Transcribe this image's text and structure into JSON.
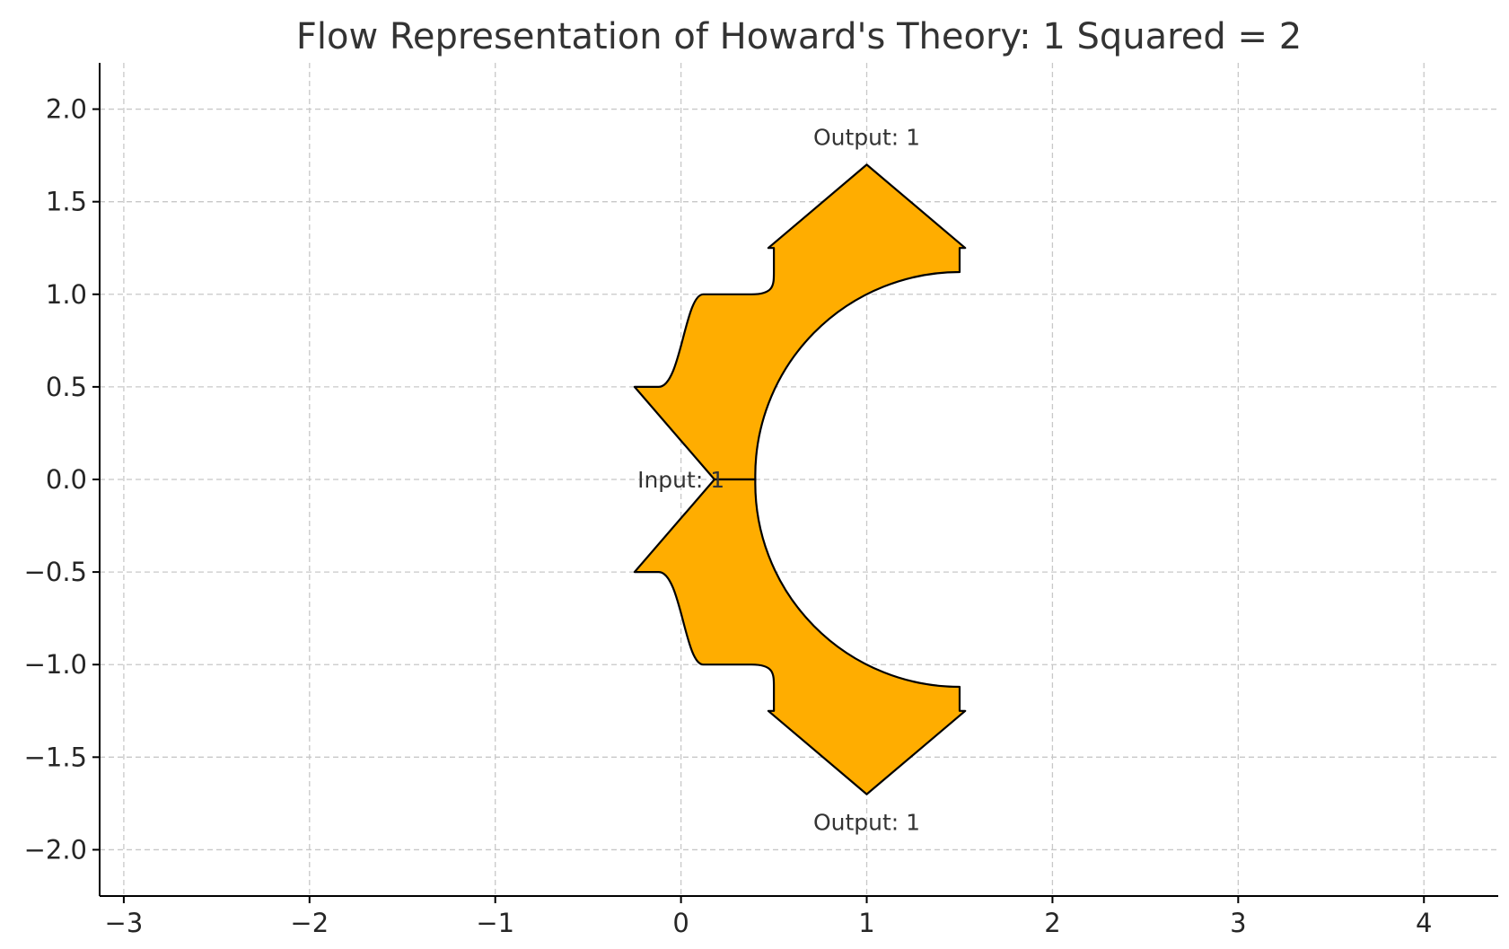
{
  "chart_data": {
    "type": "other",
    "title": "Flow Representation of Howard's Theory: 1 Squared = 2",
    "xlabel": "",
    "ylabel": "",
    "xlim": [
      -3.13,
      4.4
    ],
    "ylim": [
      -2.25,
      2.25
    ],
    "x_ticks": [
      -3,
      -2,
      -1,
      0,
      1,
      2,
      3,
      4
    ],
    "x_tick_labels": [
      "−3",
      "−2",
      "−1",
      "0",
      "1",
      "2",
      "3",
      "4"
    ],
    "y_ticks": [
      2.0,
      1.5,
      1.0,
      0.5,
      0.0,
      -0.5,
      -1.0,
      -1.5,
      -2.0
    ],
    "y_tick_labels": [
      "2.0",
      "1.5",
      "1.0",
      "0.5",
      "0.0",
      "−0.5",
      "−1.0",
      "−1.5",
      "−2.0"
    ],
    "grid": true,
    "fill_color": "#ffad00",
    "edge_color": "#000000",
    "flows": [
      {
        "name": "upper",
        "from": [
          0,
          0
        ],
        "to": [
          1,
          1.7
        ],
        "width": 1
      },
      {
        "name": "lower",
        "from": [
          0,
          0
        ],
        "to": [
          1,
          -1.7
        ],
        "width": 1
      }
    ],
    "annotations": [
      {
        "text": "Input: 1",
        "x": 0.0,
        "y": 0.0
      },
      {
        "text": "Output: 1",
        "x": 1.0,
        "y": 1.85
      },
      {
        "text": "Output: 1",
        "x": 1.0,
        "y": -1.85
      }
    ]
  }
}
